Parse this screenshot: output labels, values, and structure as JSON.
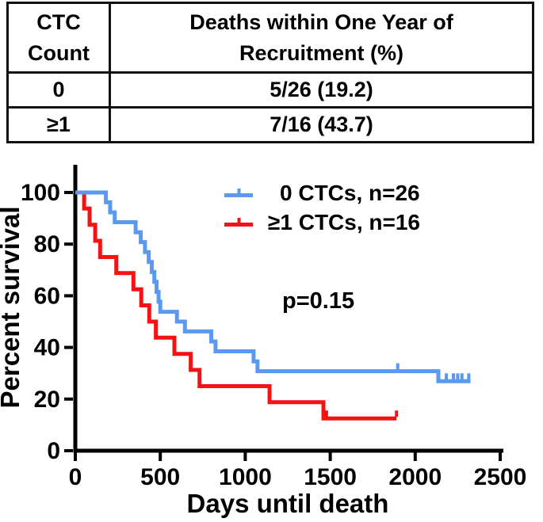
{
  "table": {
    "col1_header_line1": "CTC",
    "col1_header_line2": "Count",
    "col2_header_line1": "Deaths within One Year of",
    "col2_header_line2": "Recruitment (%)",
    "rows": [
      {
        "ctc": "0",
        "deaths": "5/26 (19.2)"
      },
      {
        "ctc": "≥1",
        "deaths": "7/16 (43.7)"
      }
    ]
  },
  "chart_data": {
    "type": "line",
    "subtype": "kaplan-meier-step",
    "title": "",
    "xlabel": "Days until death",
    "ylabel": "Percent survival",
    "xlim": [
      0,
      2500
    ],
    "ylim": [
      0,
      100
    ],
    "xticks": [
      0,
      500,
      1000,
      1500,
      2000,
      2500
    ],
    "yticks": [
      0,
      20,
      40,
      60,
      80,
      100
    ],
    "grid": false,
    "legend_position": "top-right-inside",
    "annotation": "p=0.15",
    "axis_color": "#000000",
    "series": [
      {
        "name": "≥1 CTCs, n=16",
        "color": "#F21414",
        "n": 16,
        "steps": [
          [
            0,
            100
          ],
          [
            52,
            93.8
          ],
          [
            84,
            87.5
          ],
          [
            117,
            81.3
          ],
          [
            146,
            75.0
          ],
          [
            241,
            68.8
          ],
          [
            342,
            62.5
          ],
          [
            388,
            56.3
          ],
          [
            435,
            50.0
          ],
          [
            474,
            43.8
          ],
          [
            583,
            37.5
          ],
          [
            679,
            31.3
          ],
          [
            731,
            25.0
          ],
          [
            1143,
            18.8
          ],
          [
            1460,
            12.5
          ]
        ],
        "end_day": 1890,
        "censor_marks": [
          [
            1478,
            12.5
          ],
          [
            1890,
            12.5
          ]
        ]
      },
      {
        "name": "0 CTCs, n=26",
        "color": "#599AF0",
        "n": 26,
        "steps": [
          [
            0,
            100
          ],
          [
            180,
            96.2
          ],
          [
            205,
            92.3
          ],
          [
            232,
            88.5
          ],
          [
            355,
            84.6
          ],
          [
            385,
            80.8
          ],
          [
            410,
            76.9
          ],
          [
            432,
            73.1
          ],
          [
            450,
            69.2
          ],
          [
            465,
            65.4
          ],
          [
            478,
            61.5
          ],
          [
            490,
            57.7
          ],
          [
            500,
            53.8
          ],
          [
            598,
            50.0
          ],
          [
            645,
            46.2
          ],
          [
            800,
            42.3
          ],
          [
            825,
            38.5
          ],
          [
            1049,
            34.6
          ],
          [
            1072,
            30.8
          ],
          [
            2136,
            26.9
          ]
        ],
        "end_day": 2325,
        "censor_marks": [
          [
            1897,
            30.8
          ],
          [
            2183,
            26.9
          ],
          [
            2225,
            26.9
          ],
          [
            2250,
            26.9
          ],
          [
            2275,
            26.9
          ],
          [
            2315,
            26.9
          ]
        ]
      }
    ]
  }
}
